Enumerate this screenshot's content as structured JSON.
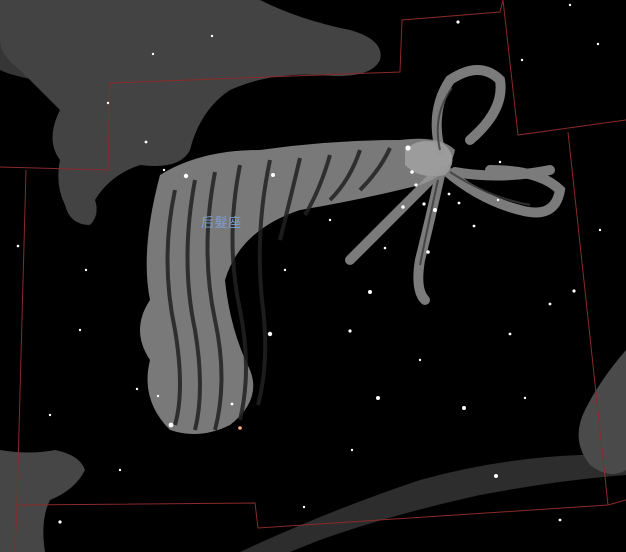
{
  "constellation": {
    "label": "后髮座"
  },
  "colors": {
    "background": "#000000",
    "boundary_line": "#8a2a2a",
    "label": "#7f9fd0",
    "artwork": "#9a9a9a",
    "star": "#ffffff"
  },
  "icons": {
    "main_artwork": "hair-tress-artwork",
    "neighbor_top_left": "lion-artwork",
    "neighbor_bottom_left": "dog-artwork",
    "neighbor_bottom_right": "maiden-artwork"
  }
}
